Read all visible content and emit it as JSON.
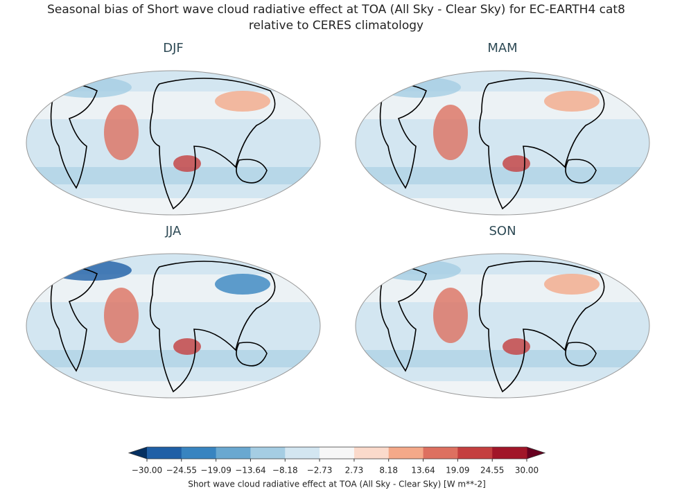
{
  "title": [
    "Seasonal bias of Short wave cloud radiative effect at TOA (All Sky - Clear Sky) for EC-EARTH4 cat8",
    "relative to CERES climatology"
  ],
  "panels": [
    {
      "title": "DJF"
    },
    {
      "title": "MAM"
    },
    {
      "title": "JJA"
    },
    {
      "title": "SON"
    }
  ],
  "colorbar": {
    "label": "Short wave cloud radiative effect at TOA (All Sky - Clear Sky) [W m**-2]",
    "ticks": [
      {
        "value": -30,
        "label": "−30.00"
      },
      {
        "value": -24.55,
        "label": "−24.55"
      },
      {
        "value": -19.09,
        "label": "−19.09"
      },
      {
        "value": -13.64,
        "label": "−13.64"
      },
      {
        "value": -8.18,
        "label": "−8.18"
      },
      {
        "value": -2.73,
        "label": "−2.73"
      },
      2.73,
      8.18,
      13.64,
      19.09,
      24.55,
      {
        "value": 30,
        "label": "30.00"
      }
    ],
    "colors": [
      "#1f5fa6",
      "#3884c0",
      "#6aa8d0",
      "#a5cde3",
      "#d3e6f1",
      "#f7f7f7",
      "#fbdacb",
      "#f4a989",
      "#dd7060",
      "#c43f3f",
      "#a11628"
    ],
    "under": "#053061",
    "over": "#67001f"
  }
}
